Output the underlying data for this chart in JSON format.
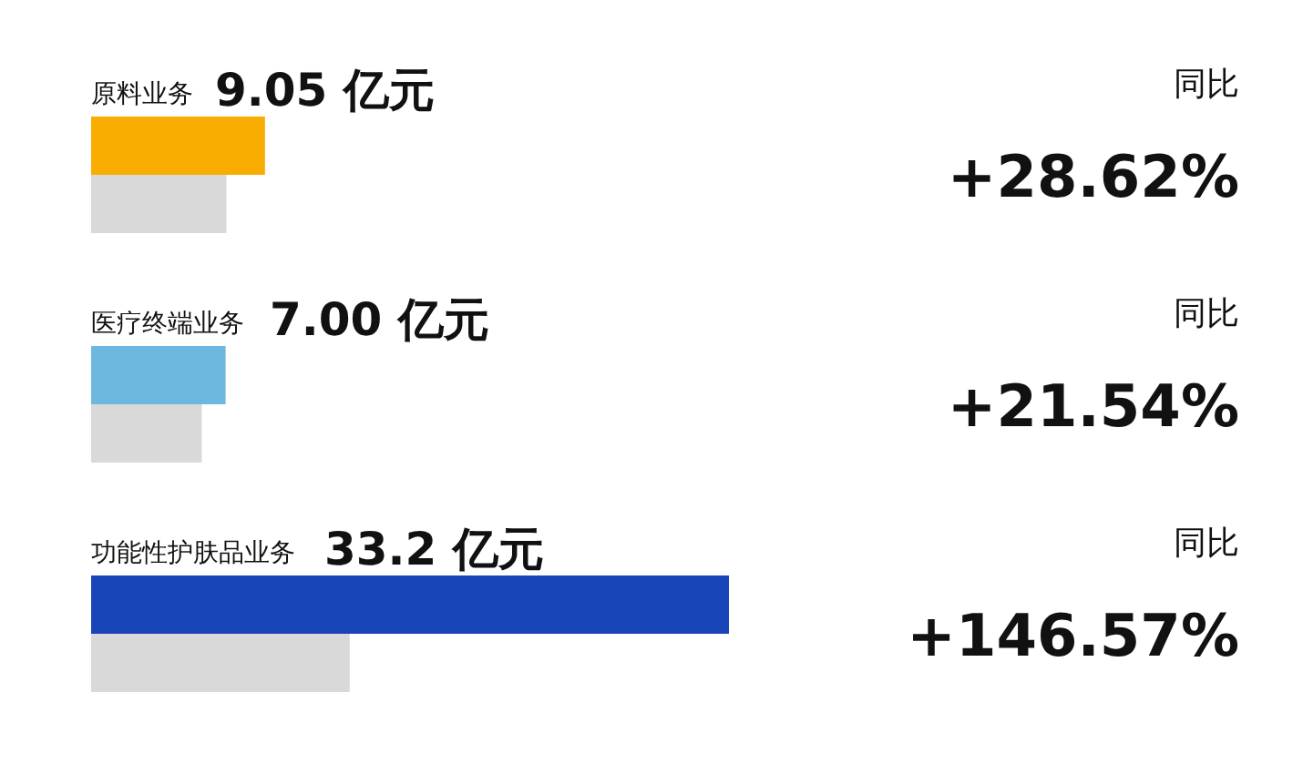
{
  "chart_data": {
    "type": "bar",
    "orientation": "horizontal",
    "categories": [
      "原料业务",
      "医疗终端业务",
      "功能性护肤品业务"
    ],
    "series": [
      {
        "colors": [
          "#f9ad00",
          "#6cb8de",
          "#1a45b8"
        ],
        "values": [
          9.05,
          7.0,
          33.2
        ],
        "value_labels": [
          "9.05 亿元",
          "7.00 亿元",
          "33.2 亿元"
        ]
      },
      {
        "color": "#d9d9d9",
        "values": [
          7.04,
          5.76,
          13.46
        ]
      }
    ],
    "annotations": [
      "同比",
      "+28.62%",
      "同比",
      "+21.54%",
      "同比",
      "+146.57%"
    ]
  }
}
